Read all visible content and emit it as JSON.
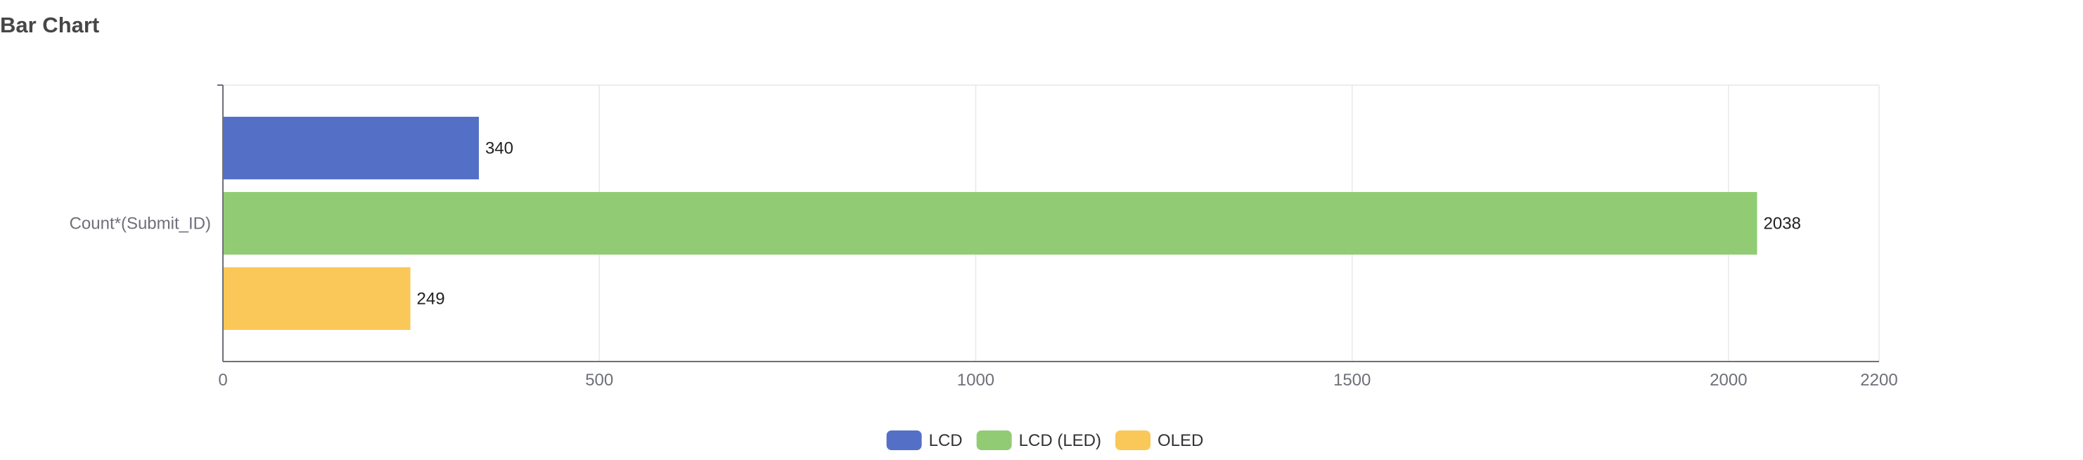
{
  "chart_data": {
    "type": "bar",
    "orientation": "horizontal",
    "title": "Bar Chart",
    "categories": [
      "Count*(Submit_ID)"
    ],
    "series": [
      {
        "name": "LCD",
        "values": [
          340
        ],
        "color": "#5470c6"
      },
      {
        "name": "LCD (LED)",
        "values": [
          2038
        ],
        "color": "#91cc75"
      },
      {
        "name": "OLED",
        "values": [
          249
        ],
        "color": "#fac858"
      }
    ],
    "xlim": [
      0,
      2200
    ],
    "x_ticks": [
      0,
      500,
      1000,
      1500,
      2000,
      2200
    ],
    "grid": true,
    "legend_position": "bottom-center",
    "xlabel": "",
    "ylabel": ""
  }
}
